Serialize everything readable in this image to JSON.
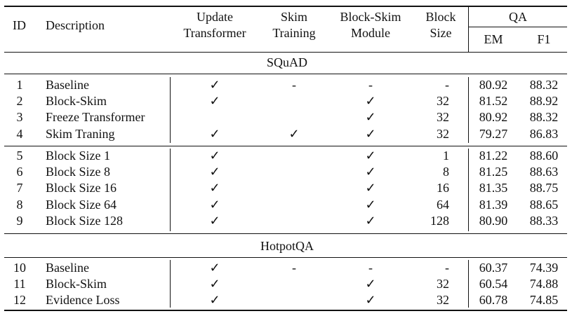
{
  "headers": {
    "id": "ID",
    "description": "Description",
    "update_transformer": [
      "Update",
      "Transformer"
    ],
    "skim_training": [
      "Skim",
      "Training"
    ],
    "block_skim_module": [
      "Block-Skim",
      "Module"
    ],
    "block_size": [
      "Block",
      "Size"
    ],
    "qa": "QA",
    "em": "EM",
    "f1": "F1"
  },
  "sections": [
    {
      "title": "SQuAD",
      "groups": [
        [
          {
            "id": "1",
            "desc": "Baseline",
            "ut": "✓",
            "st": "-",
            "bsm": "-",
            "bs": "-",
            "em": "80.92",
            "f1": "88.32"
          },
          {
            "id": "2",
            "desc": "Block-Skim",
            "ut": "✓",
            "st": "",
            "bsm": "✓",
            "bs": "32",
            "em": "81.52",
            "f1": "88.92"
          },
          {
            "id": "3",
            "desc": "Freeze Transformer",
            "ut": "",
            "st": "",
            "bsm": "✓",
            "bs": "32",
            "em": "80.92",
            "f1": "88.32"
          },
          {
            "id": "4",
            "desc": "Skim Traning",
            "ut": "✓",
            "st": "✓",
            "bsm": "✓",
            "bs": "32",
            "em": "79.27",
            "f1": "86.83"
          }
        ],
        [
          {
            "id": "5",
            "desc": "Block Size 1",
            "ut": "✓",
            "st": "",
            "bsm": "✓",
            "bs": "1",
            "em": "81.22",
            "f1": "88.60"
          },
          {
            "id": "6",
            "desc": "Block Size 8",
            "ut": "✓",
            "st": "",
            "bsm": "✓",
            "bs": "8",
            "em": "81.25",
            "f1": "88.63"
          },
          {
            "id": "7",
            "desc": "Block Size 16",
            "ut": "✓",
            "st": "",
            "bsm": "✓",
            "bs": "16",
            "em": "81.35",
            "f1": "88.75"
          },
          {
            "id": "8",
            "desc": "Block Size 64",
            "ut": "✓",
            "st": "",
            "bsm": "✓",
            "bs": "64",
            "em": "81.39",
            "f1": "88.65"
          },
          {
            "id": "9",
            "desc": "Block Size 128",
            "ut": "✓",
            "st": "",
            "bsm": "✓",
            "bs": "128",
            "em": "80.90",
            "f1": "88.33"
          }
        ]
      ]
    },
    {
      "title": "HotpotQA",
      "groups": [
        [
          {
            "id": "10",
            "desc": "Baseline",
            "ut": "✓",
            "st": "-",
            "bsm": "-",
            "bs": "-",
            "em": "60.37",
            "f1": "74.39"
          },
          {
            "id": "11",
            "desc": "Block-Skim",
            "ut": "✓",
            "st": "",
            "bsm": "✓",
            "bs": "32",
            "em": "60.54",
            "f1": "74.88"
          },
          {
            "id": "12",
            "desc": "Evidence Loss",
            "ut": "✓",
            "st": "",
            "bsm": "✓",
            "bs": "32",
            "em": "60.78",
            "f1": "74.85"
          }
        ]
      ]
    }
  ]
}
